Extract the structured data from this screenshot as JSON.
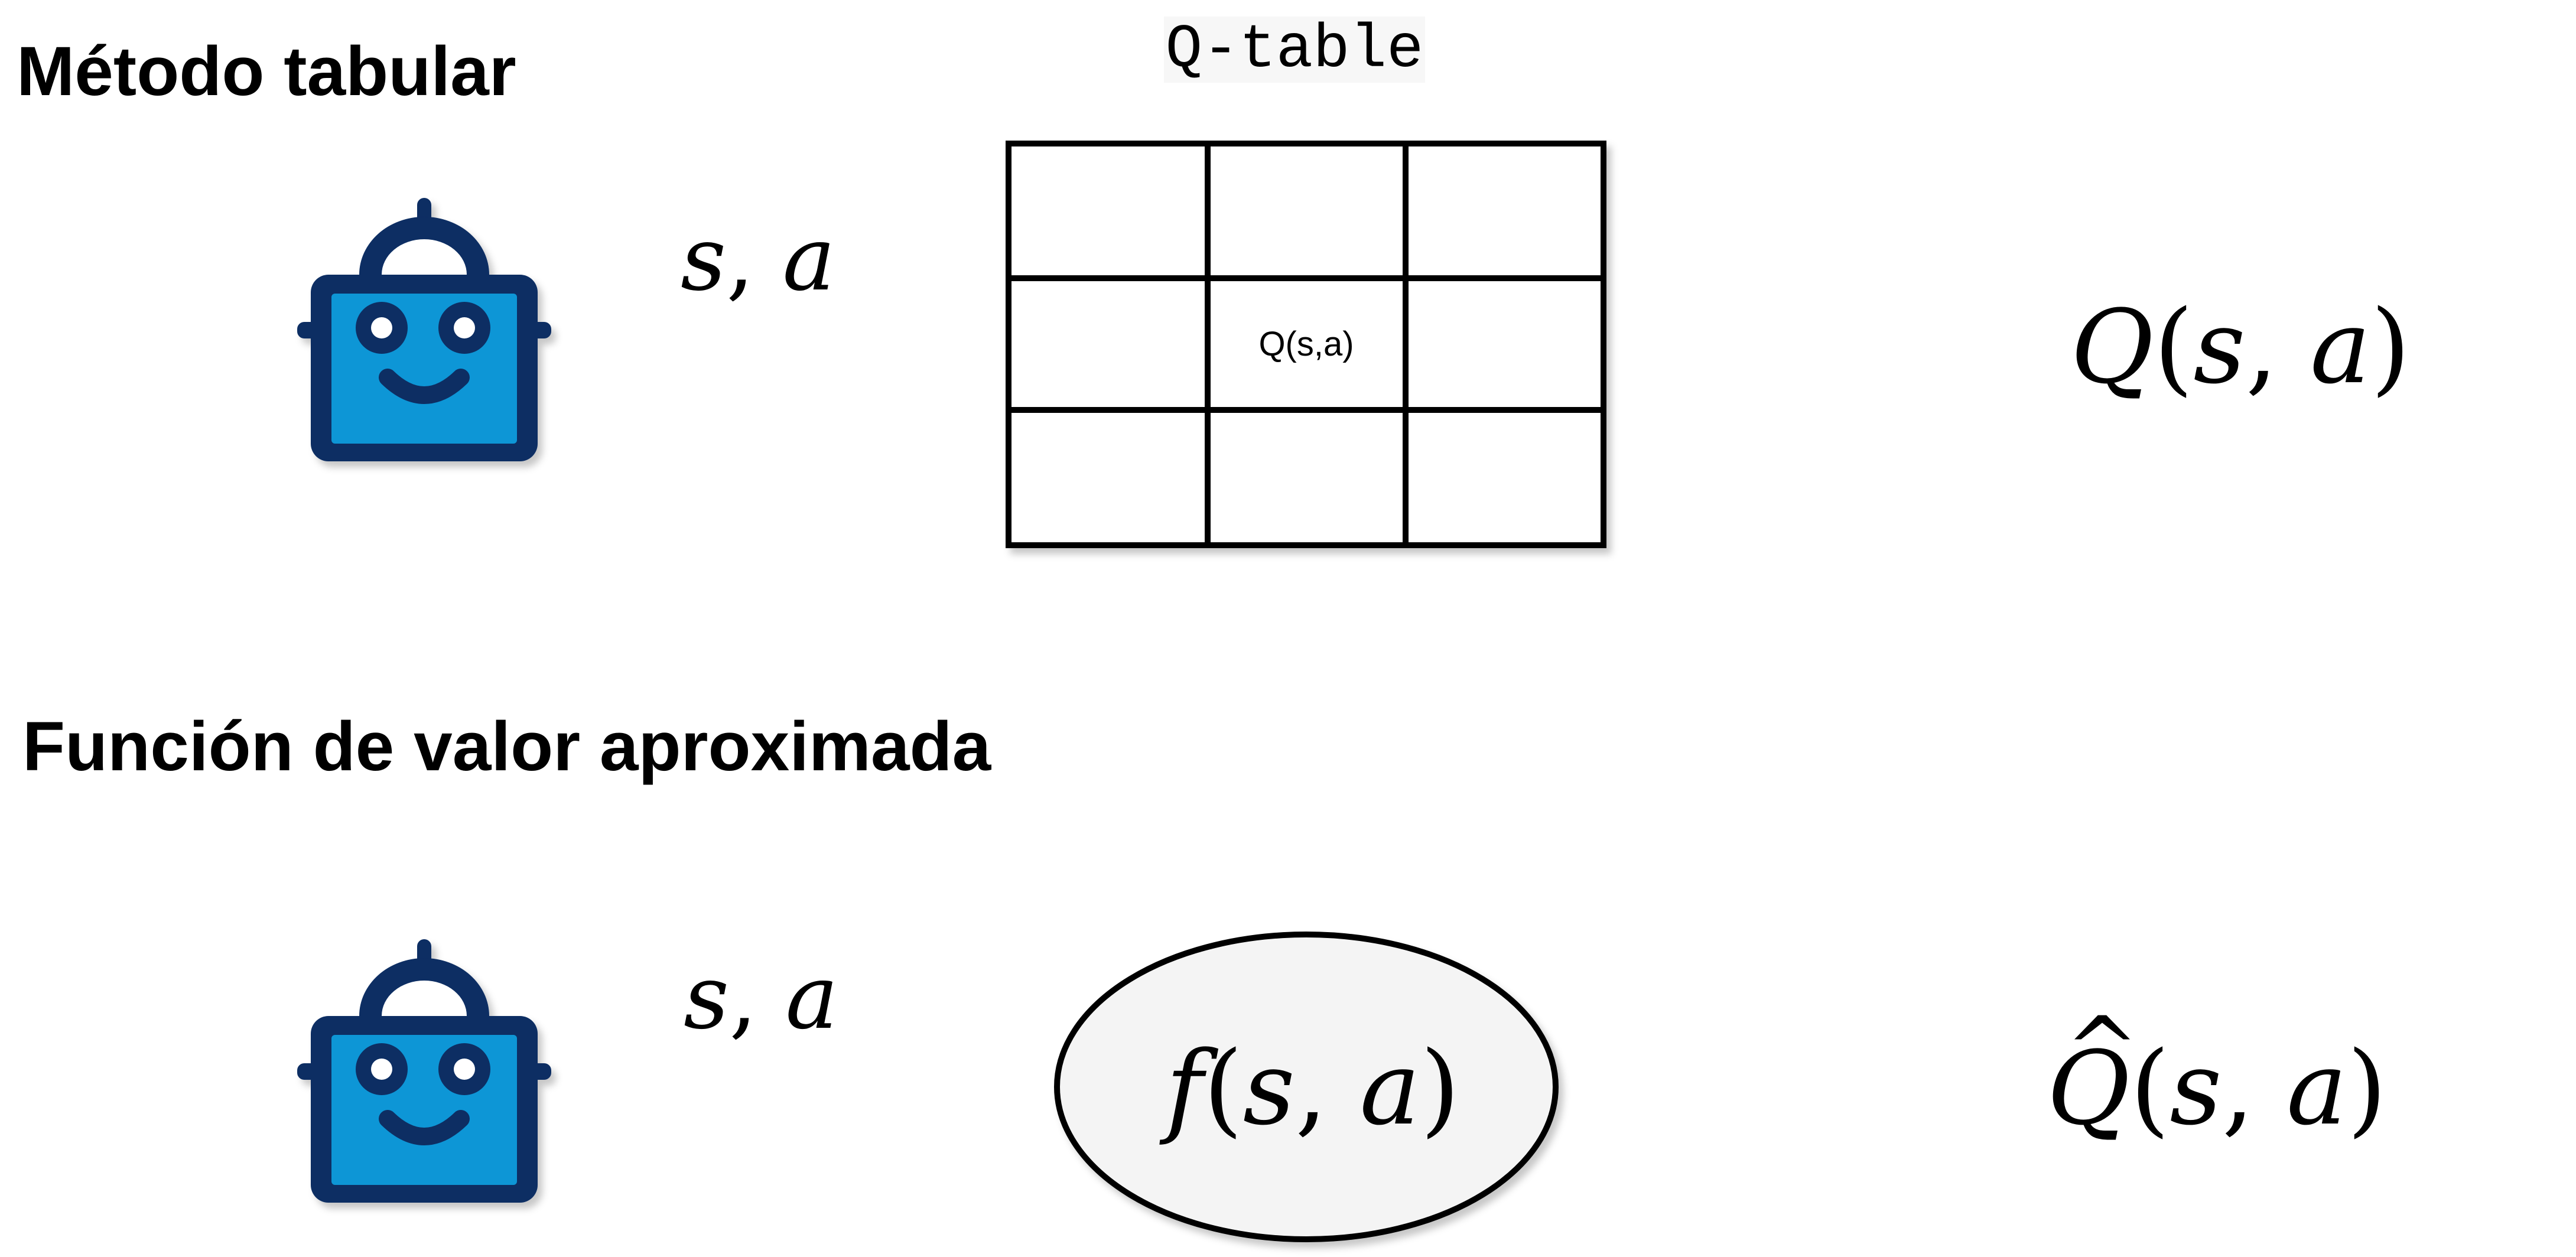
{
  "sections": {
    "tabular": {
      "title": "Método tabular",
      "input_label_s": "s",
      "input_label_sep": ", ",
      "input_label_a": "a",
      "table_title": "Q-table",
      "cell_label": "Q(s,a)",
      "table_rows": 3,
      "table_cols": 3,
      "output_func": "Q",
      "output_open": "(",
      "output_s": "s",
      "output_sep": ", ",
      "output_a": "a",
      "output_close": ")"
    },
    "approx": {
      "title": "Función de valor aproximada",
      "input_label_s": "s",
      "input_label_sep": ", ",
      "input_label_a": "a",
      "function_f": "f",
      "function_open": "(",
      "function_s": "s",
      "function_sep": ", ",
      "function_a": "a",
      "function_close": ")",
      "output_func": "Q",
      "output_hat": "^",
      "output_open": "(",
      "output_s": "s",
      "output_sep": ", ",
      "output_a": "a",
      "output_close": ")"
    }
  },
  "colors": {
    "robot_dark": "#0a2d63",
    "robot_light": "#0f96d6",
    "ellipse_fill": "#f4f4f4",
    "stroke": "#000000"
  },
  "icons": {
    "agent": "robot-icon"
  }
}
